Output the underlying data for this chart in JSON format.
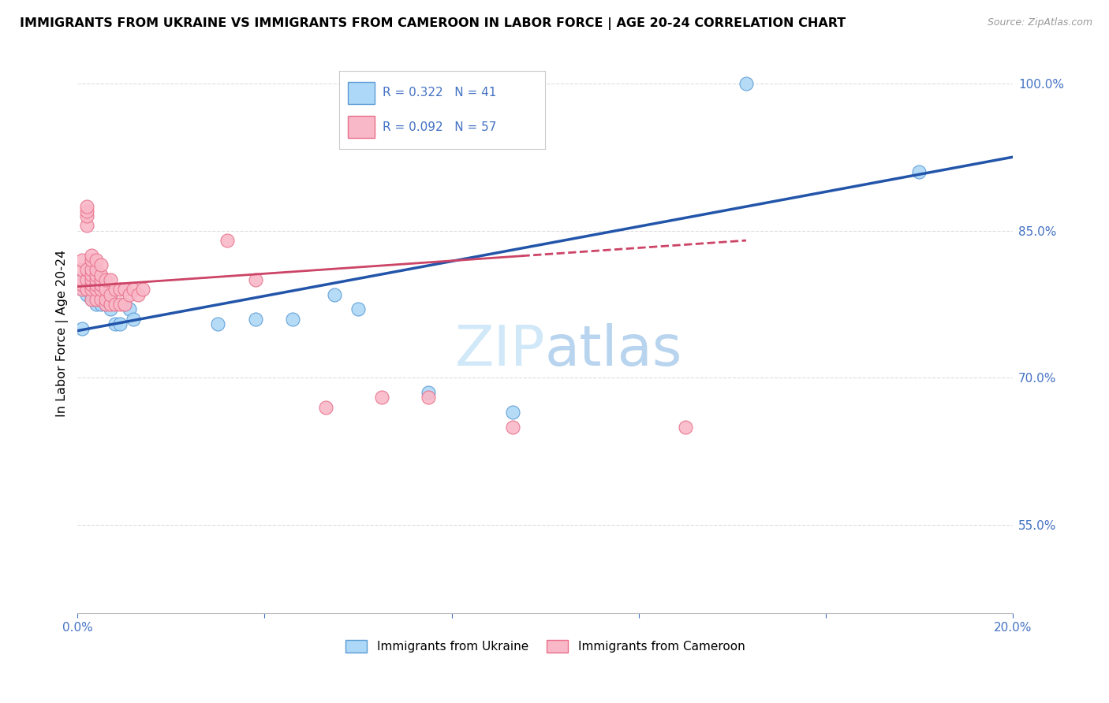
{
  "title": "IMMIGRANTS FROM UKRAINE VS IMMIGRANTS FROM CAMEROON IN LABOR FORCE | AGE 20-24 CORRELATION CHART",
  "source": "Source: ZipAtlas.com",
  "ylabel": "In Labor Force | Age 20-24",
  "xlim": [
    0.0,
    0.2
  ],
  "ylim": [
    0.46,
    1.03
  ],
  "ytick_positions": [
    0.55,
    0.7,
    0.85,
    1.0
  ],
  "ytick_labels": [
    "55.0%",
    "70.0%",
    "85.0%",
    "100.0%"
  ],
  "ukraine_R": 0.322,
  "ukraine_N": 41,
  "cameroon_R": 0.092,
  "cameroon_N": 57,
  "ukraine_color": "#add8f7",
  "cameroon_color": "#f9b8c8",
  "ukraine_edge_color": "#5b9bd5",
  "cameroon_edge_color": "#e8708a",
  "ukraine_line_color": "#2255aa",
  "cameroon_line_color": "#cc4466",
  "watermark_color": "#d0e8f8",
  "ukraine_x": [
    0.001,
    0.001,
    0.001,
    0.002,
    0.002,
    0.002,
    0.002,
    0.003,
    0.003,
    0.003,
    0.003,
    0.003,
    0.004,
    0.004,
    0.004,
    0.004,
    0.004,
    0.005,
    0.005,
    0.005,
    0.005,
    0.005,
    0.006,
    0.006,
    0.006,
    0.007,
    0.007,
    0.008,
    0.009,
    0.01,
    0.011,
    0.012,
    0.03,
    0.038,
    0.046,
    0.055,
    0.06,
    0.075,
    0.093,
    0.143,
    0.18
  ],
  "ukraine_y": [
    0.75,
    0.79,
    0.8,
    0.785,
    0.79,
    0.795,
    0.8,
    0.78,
    0.785,
    0.79,
    0.795,
    0.8,
    0.775,
    0.78,
    0.785,
    0.79,
    0.795,
    0.775,
    0.78,
    0.785,
    0.79,
    0.8,
    0.775,
    0.78,
    0.79,
    0.77,
    0.78,
    0.755,
    0.755,
    0.775,
    0.77,
    0.76,
    0.755,
    0.76,
    0.76,
    0.785,
    0.77,
    0.685,
    0.665,
    1.0,
    0.91
  ],
  "cameroon_x": [
    0.001,
    0.001,
    0.001,
    0.001,
    0.001,
    0.002,
    0.002,
    0.002,
    0.002,
    0.002,
    0.002,
    0.002,
    0.003,
    0.003,
    0.003,
    0.003,
    0.003,
    0.003,
    0.003,
    0.003,
    0.004,
    0.004,
    0.004,
    0.004,
    0.004,
    0.004,
    0.004,
    0.005,
    0.005,
    0.005,
    0.005,
    0.005,
    0.005,
    0.006,
    0.006,
    0.006,
    0.006,
    0.007,
    0.007,
    0.007,
    0.008,
    0.008,
    0.009,
    0.009,
    0.01,
    0.01,
    0.011,
    0.012,
    0.013,
    0.014,
    0.032,
    0.038,
    0.053,
    0.065,
    0.075,
    0.093,
    0.13
  ],
  "cameroon_y": [
    0.79,
    0.795,
    0.8,
    0.81,
    0.82,
    0.79,
    0.8,
    0.81,
    0.855,
    0.865,
    0.87,
    0.875,
    0.78,
    0.79,
    0.795,
    0.8,
    0.805,
    0.81,
    0.82,
    0.825,
    0.78,
    0.79,
    0.795,
    0.8,
    0.805,
    0.81,
    0.82,
    0.78,
    0.79,
    0.795,
    0.8,
    0.805,
    0.815,
    0.775,
    0.78,
    0.79,
    0.8,
    0.775,
    0.785,
    0.8,
    0.775,
    0.79,
    0.775,
    0.79,
    0.775,
    0.79,
    0.785,
    0.79,
    0.785,
    0.79,
    0.84,
    0.8,
    0.67,
    0.68,
    0.68,
    0.65,
    0.65
  ],
  "ukraine_trendline_x": [
    0.0,
    0.2
  ],
  "ukraine_trendline_y": [
    0.748,
    0.925
  ],
  "cameroon_trendline_x": [
    0.0,
    0.143
  ],
  "cameroon_trendline_y": [
    0.793,
    0.84
  ]
}
